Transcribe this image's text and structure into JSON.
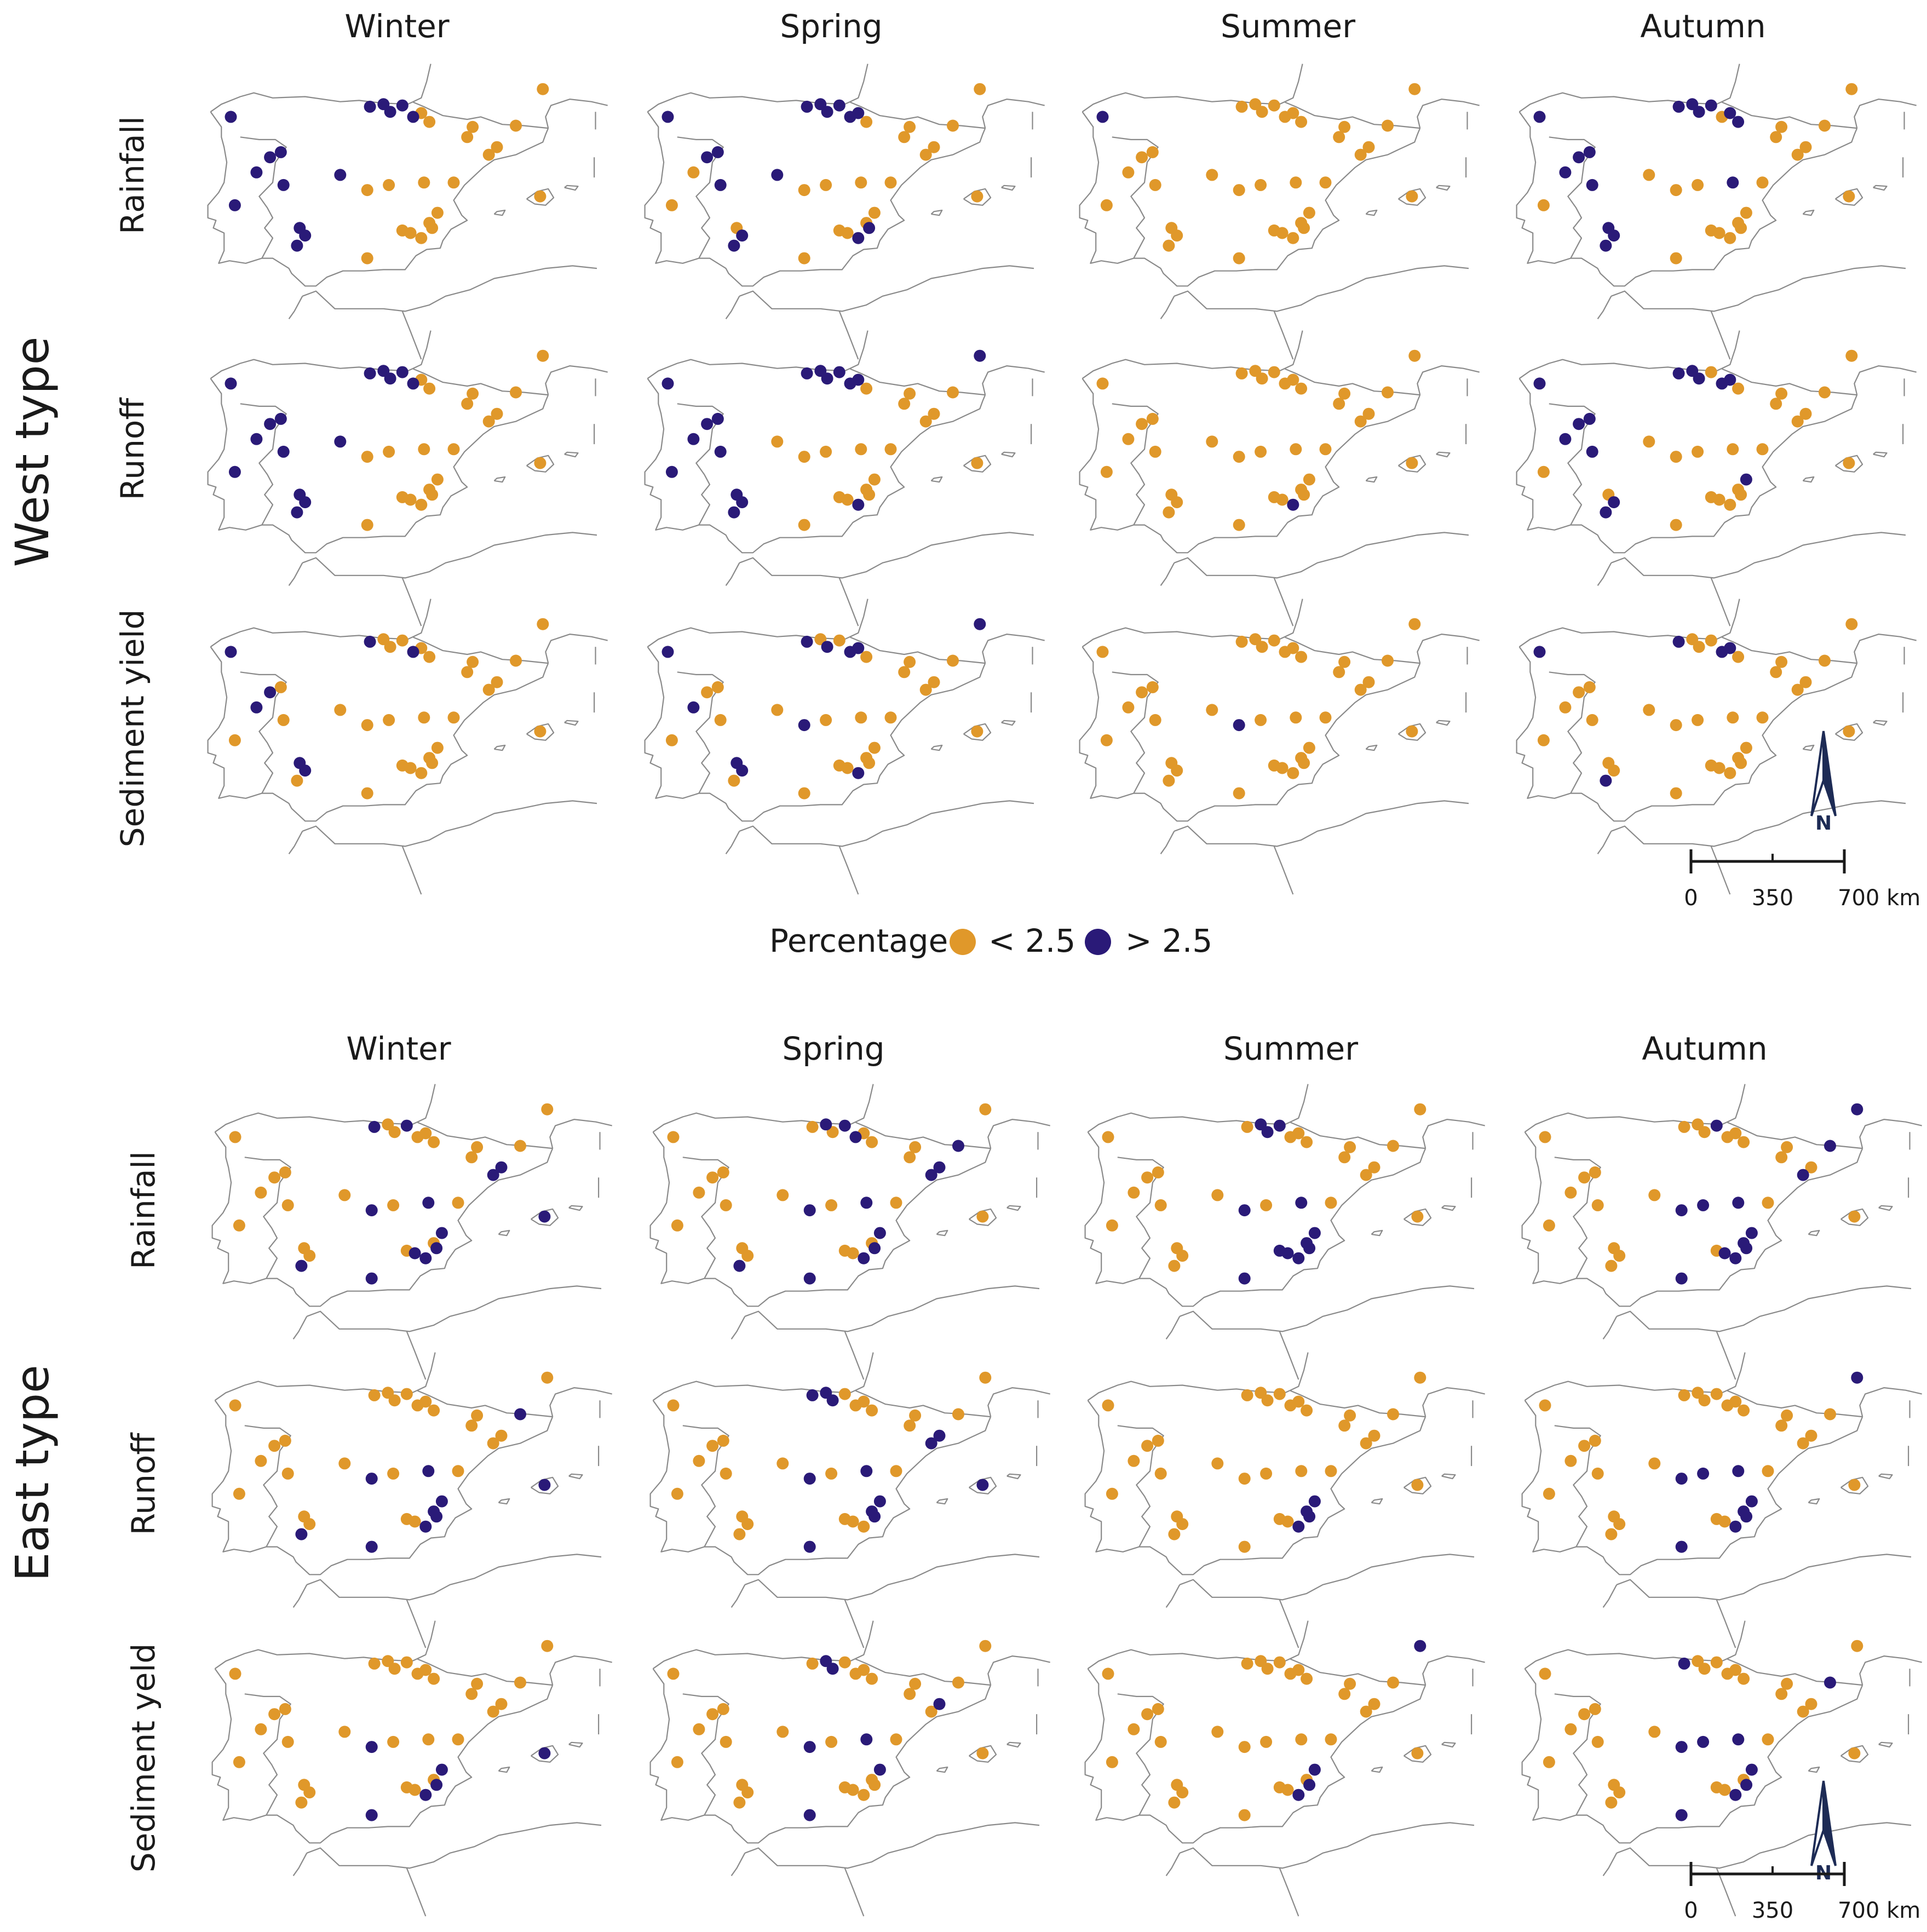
{
  "colors": {
    "low": "#E0982A",
    "high": "#2A1A78",
    "coast": "#8a8a8a",
    "text": "#1a1a1a"
  },
  "seasons": [
    "Winter",
    "Spring",
    "Summer",
    "Autumn"
  ],
  "legend": {
    "title": "Percentage",
    "low_label": "< 2.5",
    "high_label": "> 2.5"
  },
  "scalebar": {
    "labels": [
      "0",
      "350",
      "700 km"
    ],
    "north_label": "N"
  },
  "stations": [
    [
      -8.55,
      42.8
    ],
    [
      -3.4,
      43.2
    ],
    [
      -2.9,
      43.3
    ],
    [
      -2.65,
      43.0
    ],
    [
      -2.2,
      43.25
    ],
    [
      -1.8,
      42.8
    ],
    [
      -1.5,
      42.95
    ],
    [
      -1.2,
      42.6
    ],
    [
      0.4,
      42.4
    ],
    [
      2.0,
      42.45
    ],
    [
      1.3,
      41.6
    ],
    [
      1.0,
      41.3
    ],
    [
      3.0,
      43.9
    ],
    [
      2.9,
      39.65
    ],
    [
      -7.1,
      41.2
    ],
    [
      -6.7,
      41.4
    ],
    [
      -7.6,
      40.6
    ],
    [
      -6.6,
      40.1
    ],
    [
      -4.5,
      40.5
    ],
    [
      -3.5,
      39.9
    ],
    [
      -2.7,
      40.1
    ],
    [
      -1.4,
      40.2
    ],
    [
      -0.9,
      39.0
    ],
    [
      -1.2,
      38.6
    ],
    [
      -1.1,
      38.4
    ],
    [
      -1.5,
      38.0
    ],
    [
      -1.9,
      38.2
    ],
    [
      -2.2,
      38.3
    ],
    [
      -6.0,
      38.4
    ],
    [
      -5.8,
      38.1
    ],
    [
      -6.1,
      37.7
    ],
    [
      -3.5,
      37.2
    ],
    [
      -8.4,
      39.3
    ],
    [
      -0.3,
      40.2
    ],
    [
      0.2,
      42.0
    ]
  ],
  "panels": [
    {
      "section": "West type",
      "rows": [
        {
          "label": "Rainfall",
          "high": [
            "0,1,2,3,4,5,14,15,16,17,18,28,29,30,32",
            "0,1,2,3,4,5,6,14,15,17,18,24,25,29,30",
            "0",
            "0,1,2,3,4,6,7,14,15,16,17,21,28,29,30"
          ]
        },
        {
          "label": "Runoff",
          "high": [
            "0,1,2,3,4,5,14,15,16,17,18,28,29,30,32",
            "0,1,2,3,4,5,6,12,14,15,16,17,25,28,29,30,32",
            "25",
            "0,1,2,3,5,6,14,15,16,17,22,29,30"
          ]
        },
        {
          "label": "Sediment yield",
          "high": [
            "0,1,5,14,16,28,29",
            "0,1,3,5,6,12,16,19,25,28,29",
            "19",
            "0,1,5,6,30"
          ]
        }
      ]
    },
    {
      "section": "East type",
      "rows": [
        {
          "label": "Rainfall",
          "high": [
            "1,4,10,11,13,19,21,22,24,25,26,30,31",
            "2,4,5,10,11,19,21,22,24,25,30,31,9",
            "2,3,4,19,21,22,23,24,25,26,27,31",
            "4,9,11,12,19,20,21,22,23,24,25,26,31"
          ]
        },
        {
          "label": "Runoff",
          "high": [
            "9,13,19,21,22,23,24,25,30,31",
            "1,2,3,10,11,13,19,21,22,23,24,31",
            "22,23,24,25",
            "12,19,20,21,22,23,24,25,31"
          ]
        },
        {
          "label": "Sediment yeld",
          "high": [
            "13,19,22,24,25,31",
            "2,3,10,19,21,22,31",
            "12,22,24,25",
            "1,9,19,20,21,22,24,25,31"
          ]
        }
      ]
    }
  ]
}
